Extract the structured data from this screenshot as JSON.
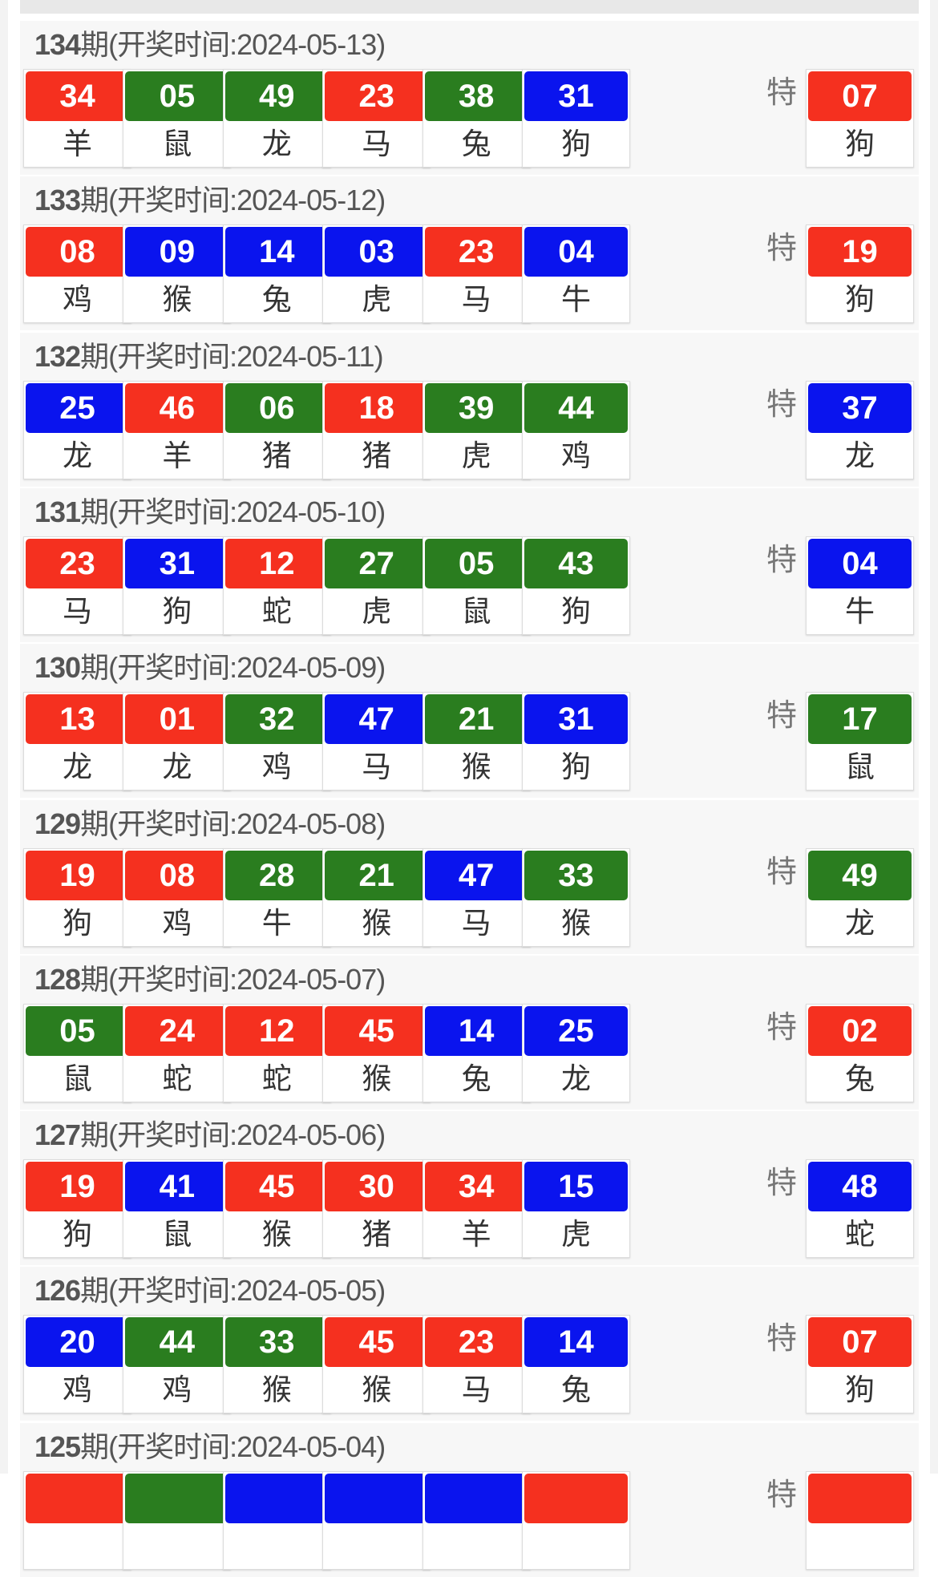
{
  "colors": {
    "r": "#f5301f",
    "g": "#2a7d1f",
    "b": "#0a14ee"
  },
  "special_label": "特",
  "header_prefix": "期(开奖时间:",
  "header_suffix": ")",
  "draws": [
    {
      "issue": "134",
      "date": "2024-05-13",
      "balls": [
        {
          "n": "34",
          "c": "r",
          "z": "羊"
        },
        {
          "n": "05",
          "c": "g",
          "z": "鼠"
        },
        {
          "n": "49",
          "c": "g",
          "z": "龙"
        },
        {
          "n": "23",
          "c": "r",
          "z": "马"
        },
        {
          "n": "38",
          "c": "g",
          "z": "兔"
        },
        {
          "n": "31",
          "c": "b",
          "z": "狗"
        }
      ],
      "special": {
        "n": "07",
        "c": "r",
        "z": "狗"
      }
    },
    {
      "issue": "133",
      "date": "2024-05-12",
      "balls": [
        {
          "n": "08",
          "c": "r",
          "z": "鸡"
        },
        {
          "n": "09",
          "c": "b",
          "z": "猴"
        },
        {
          "n": "14",
          "c": "b",
          "z": "兔"
        },
        {
          "n": "03",
          "c": "b",
          "z": "虎"
        },
        {
          "n": "23",
          "c": "r",
          "z": "马"
        },
        {
          "n": "04",
          "c": "b",
          "z": "牛"
        }
      ],
      "special": {
        "n": "19",
        "c": "r",
        "z": "狗"
      }
    },
    {
      "issue": "132",
      "date": "2024-05-11",
      "balls": [
        {
          "n": "25",
          "c": "b",
          "z": "龙"
        },
        {
          "n": "46",
          "c": "r",
          "z": "羊"
        },
        {
          "n": "06",
          "c": "g",
          "z": "猪"
        },
        {
          "n": "18",
          "c": "r",
          "z": "猪"
        },
        {
          "n": "39",
          "c": "g",
          "z": "虎"
        },
        {
          "n": "44",
          "c": "g",
          "z": "鸡"
        }
      ],
      "special": {
        "n": "37",
        "c": "b",
        "z": "龙"
      }
    },
    {
      "issue": "131",
      "date": "2024-05-10",
      "balls": [
        {
          "n": "23",
          "c": "r",
          "z": "马"
        },
        {
          "n": "31",
          "c": "b",
          "z": "狗"
        },
        {
          "n": "12",
          "c": "r",
          "z": "蛇"
        },
        {
          "n": "27",
          "c": "g",
          "z": "虎"
        },
        {
          "n": "05",
          "c": "g",
          "z": "鼠"
        },
        {
          "n": "43",
          "c": "g",
          "z": "狗"
        }
      ],
      "special": {
        "n": "04",
        "c": "b",
        "z": "牛"
      }
    },
    {
      "issue": "130",
      "date": "2024-05-09",
      "balls": [
        {
          "n": "13",
          "c": "r",
          "z": "龙"
        },
        {
          "n": "01",
          "c": "r",
          "z": "龙"
        },
        {
          "n": "32",
          "c": "g",
          "z": "鸡"
        },
        {
          "n": "47",
          "c": "b",
          "z": "马"
        },
        {
          "n": "21",
          "c": "g",
          "z": "猴"
        },
        {
          "n": "31",
          "c": "b",
          "z": "狗"
        }
      ],
      "special": {
        "n": "17",
        "c": "g",
        "z": "鼠"
      }
    },
    {
      "issue": "129",
      "date": "2024-05-08",
      "balls": [
        {
          "n": "19",
          "c": "r",
          "z": "狗"
        },
        {
          "n": "08",
          "c": "r",
          "z": "鸡"
        },
        {
          "n": "28",
          "c": "g",
          "z": "牛"
        },
        {
          "n": "21",
          "c": "g",
          "z": "猴"
        },
        {
          "n": "47",
          "c": "b",
          "z": "马"
        },
        {
          "n": "33",
          "c": "g",
          "z": "猴"
        }
      ],
      "special": {
        "n": "49",
        "c": "g",
        "z": "龙"
      }
    },
    {
      "issue": "128",
      "date": "2024-05-07",
      "balls": [
        {
          "n": "05",
          "c": "g",
          "z": "鼠"
        },
        {
          "n": "24",
          "c": "r",
          "z": "蛇"
        },
        {
          "n": "12",
          "c": "r",
          "z": "蛇"
        },
        {
          "n": "45",
          "c": "r",
          "z": "猴"
        },
        {
          "n": "14",
          "c": "b",
          "z": "兔"
        },
        {
          "n": "25",
          "c": "b",
          "z": "龙"
        }
      ],
      "special": {
        "n": "02",
        "c": "r",
        "z": "兔"
      }
    },
    {
      "issue": "127",
      "date": "2024-05-06",
      "balls": [
        {
          "n": "19",
          "c": "r",
          "z": "狗"
        },
        {
          "n": "41",
          "c": "b",
          "z": "鼠"
        },
        {
          "n": "45",
          "c": "r",
          "z": "猴"
        },
        {
          "n": "30",
          "c": "r",
          "z": "猪"
        },
        {
          "n": "34",
          "c": "r",
          "z": "羊"
        },
        {
          "n": "15",
          "c": "b",
          "z": "虎"
        }
      ],
      "special": {
        "n": "48",
        "c": "b",
        "z": "蛇"
      }
    },
    {
      "issue": "126",
      "date": "2024-05-05",
      "balls": [
        {
          "n": "20",
          "c": "b",
          "z": "鸡"
        },
        {
          "n": "44",
          "c": "g",
          "z": "鸡"
        },
        {
          "n": "33",
          "c": "g",
          "z": "猴"
        },
        {
          "n": "45",
          "c": "r",
          "z": "猴"
        },
        {
          "n": "23",
          "c": "r",
          "z": "马"
        },
        {
          "n": "14",
          "c": "b",
          "z": "兔"
        }
      ],
      "special": {
        "n": "07",
        "c": "r",
        "z": "狗"
      }
    },
    {
      "issue": "125",
      "date": "2024-05-04",
      "balls": [
        {
          "c": "r"
        },
        {
          "c": "g"
        },
        {
          "c": "b"
        },
        {
          "c": "b"
        },
        {
          "c": "b"
        },
        {
          "c": "r"
        }
      ],
      "special": {
        "c": "r"
      }
    }
  ]
}
